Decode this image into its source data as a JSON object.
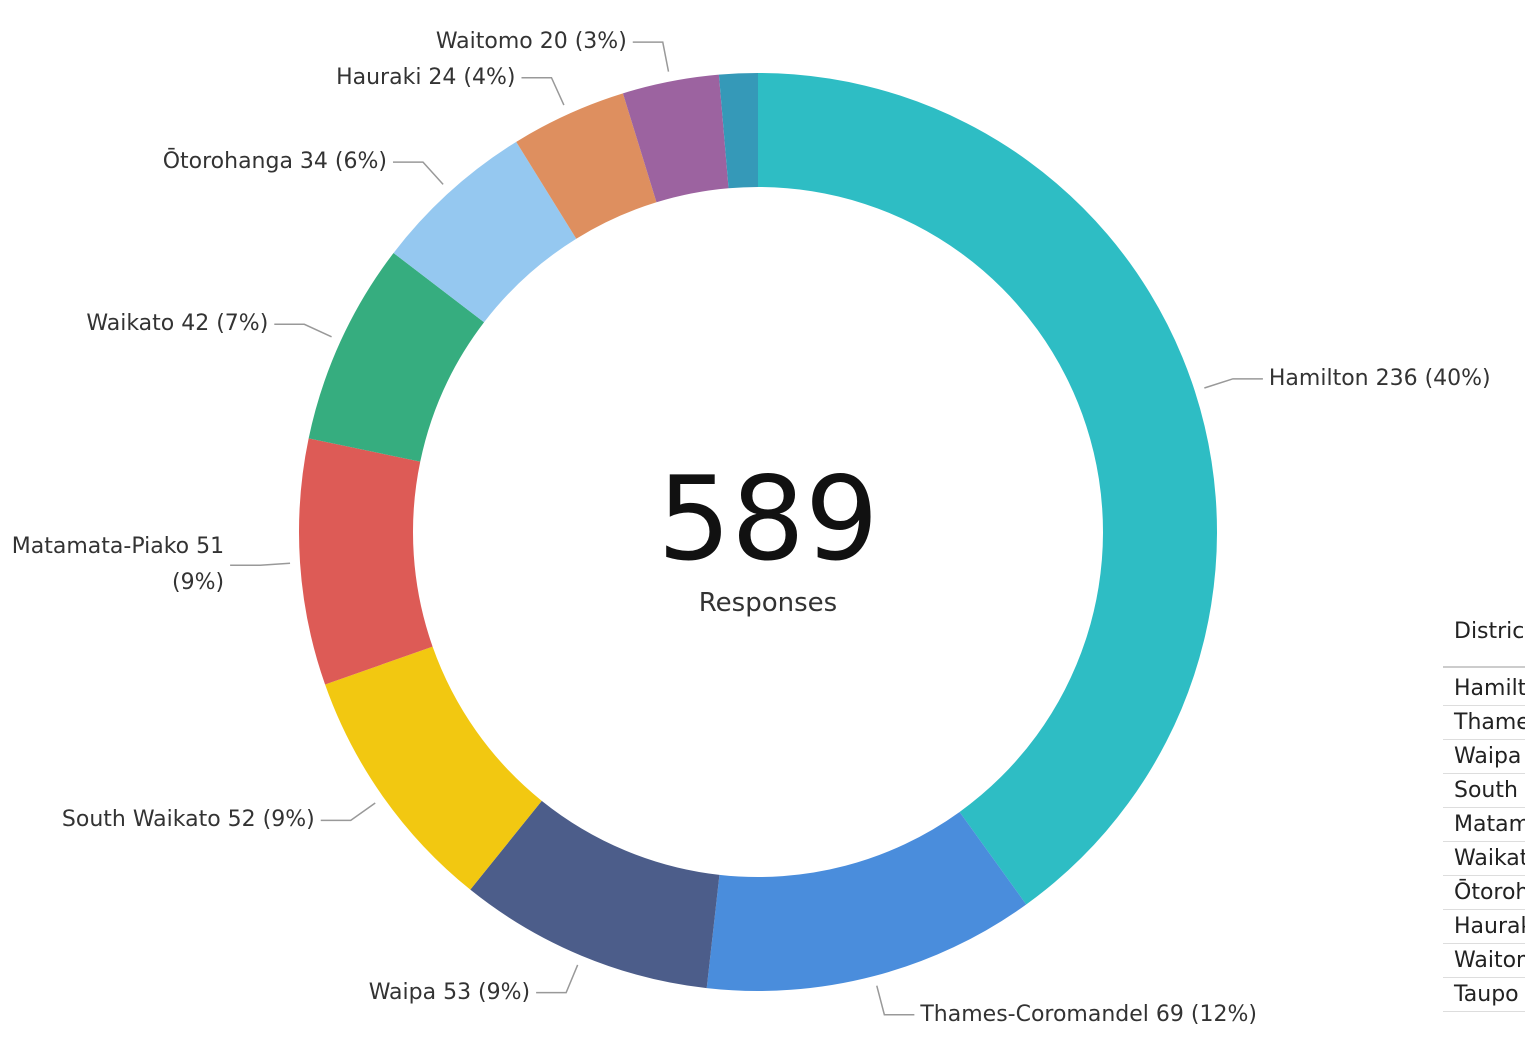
{
  "chart_data": {
    "type": "donut",
    "categories": [
      "Hamilton",
      "Thames-Coromandel",
      "Waipa",
      "South Waikato",
      "Matamata-Piako",
      "Waikato",
      "Ōtorohanga",
      "Hauraki",
      "Waitomo",
      "Taupo"
    ],
    "values": [
      236,
      69,
      53,
      52,
      51,
      42,
      34,
      24,
      20,
      8
    ],
    "value_labels": [
      "Hamilton 236 (40%)",
      "Thames-Coromandel 69 (12%)",
      "Waipa 53 (9%)",
      "South Waikato 52 (9%)",
      "Matamata-Piako 51 (9%)",
      "Waikato 42 (7%)",
      "Ōtorohanga 34 (6%)",
      "Hauraki 24 (4%)",
      "Waitomo 20 (3%)",
      null
    ],
    "colors": [
      "#2ebdc4",
      "#4a8ddc",
      "#4c5d8a",
      "#f2c811",
      "#dd5b56",
      "#36ad7f",
      "#95c8f0",
      "#de8f5f",
      "#9c63a0",
      "#3599b8"
    ],
    "total": 589,
    "center_label": "Responses",
    "table_header": "District"
  }
}
